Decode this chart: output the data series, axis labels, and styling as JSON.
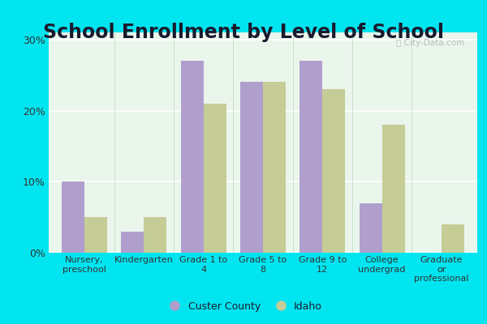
{
  "title": "School Enrollment by Level of School",
  "categories": [
    "Nursery,\npreschool",
    "Kindergarten",
    "Grade 1 to\n4",
    "Grade 5 to\n8",
    "Grade 9 to\n12",
    "College\nundergrad",
    "Graduate\nor\nprofessional"
  ],
  "custer_values": [
    10.0,
    3.0,
    27.0,
    24.0,
    27.0,
    7.0,
    0.0
  ],
  "idaho_values": [
    5.0,
    5.0,
    21.0,
    24.0,
    23.0,
    18.0,
    4.0
  ],
  "custer_color": "#b09fcc",
  "idaho_color": "#c5cc96",
  "custer_label": "Custer County",
  "idaho_label": "Idaho",
  "ylim": [
    0,
    31
  ],
  "yticks": [
    0,
    10,
    20,
    30
  ],
  "ytick_labels": [
    "0%",
    "10%",
    "20%",
    "30%"
  ],
  "plot_bg_color": "#eaf5ec",
  "outer_bg_color": "#00e5f0",
  "title_bg_color": "#00e5f0",
  "grid_color": "#c8e8cc",
  "title_fontsize": 17,
  "title_color": "#1a1a2e",
  "watermark_text": "ⓘ City-Data.com"
}
